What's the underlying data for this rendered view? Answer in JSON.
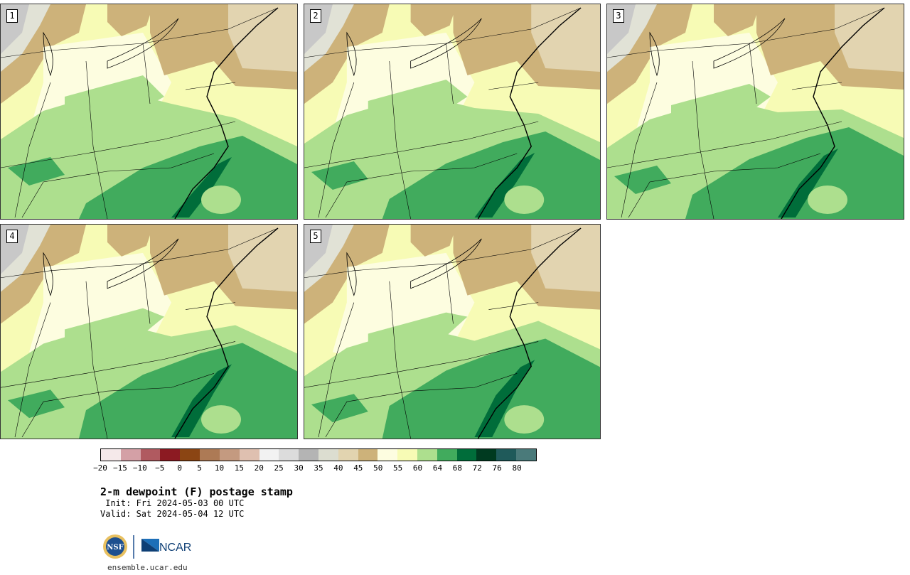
{
  "title": "2-m dewpoint (F) postage stamp",
  "init": " Init: Fri 2024-05-03 00 UTC",
  "valid": "Valid: Sat 2024-05-04 12 UTC",
  "url": "ensemble.ucar.edu",
  "logos": {
    "nsf": "NSF",
    "ncar": "NCAR"
  },
  "members": [
    "1",
    "2",
    "3",
    "4",
    "5"
  ],
  "colorbar": {
    "ticks": [
      "−20",
      "−15",
      "−10",
      "−5",
      "0",
      "5",
      "10",
      "15",
      "20",
      "25",
      "30",
      "35",
      "40",
      "45",
      "50",
      "55",
      "60",
      "64",
      "68",
      "72",
      "76",
      "80"
    ],
    "colors": [
      "#f5e9ea",
      "#d4a0a6",
      "#b05a60",
      "#8c1a22",
      "#8b4513",
      "#ad7a55",
      "#c49a80",
      "#dfc0b0",
      "#f2f2f2",
      "#dcdcdc",
      "#b4b4b4",
      "#dcddd0",
      "#e2d4b0",
      "#cdb27a",
      "#fdfde0",
      "#f7fbb5",
      "#addf8e",
      "#41ab5d",
      "#006d3a",
      "#003a20",
      "#1f5a5a",
      "#4a7a7a"
    ]
  }
}
